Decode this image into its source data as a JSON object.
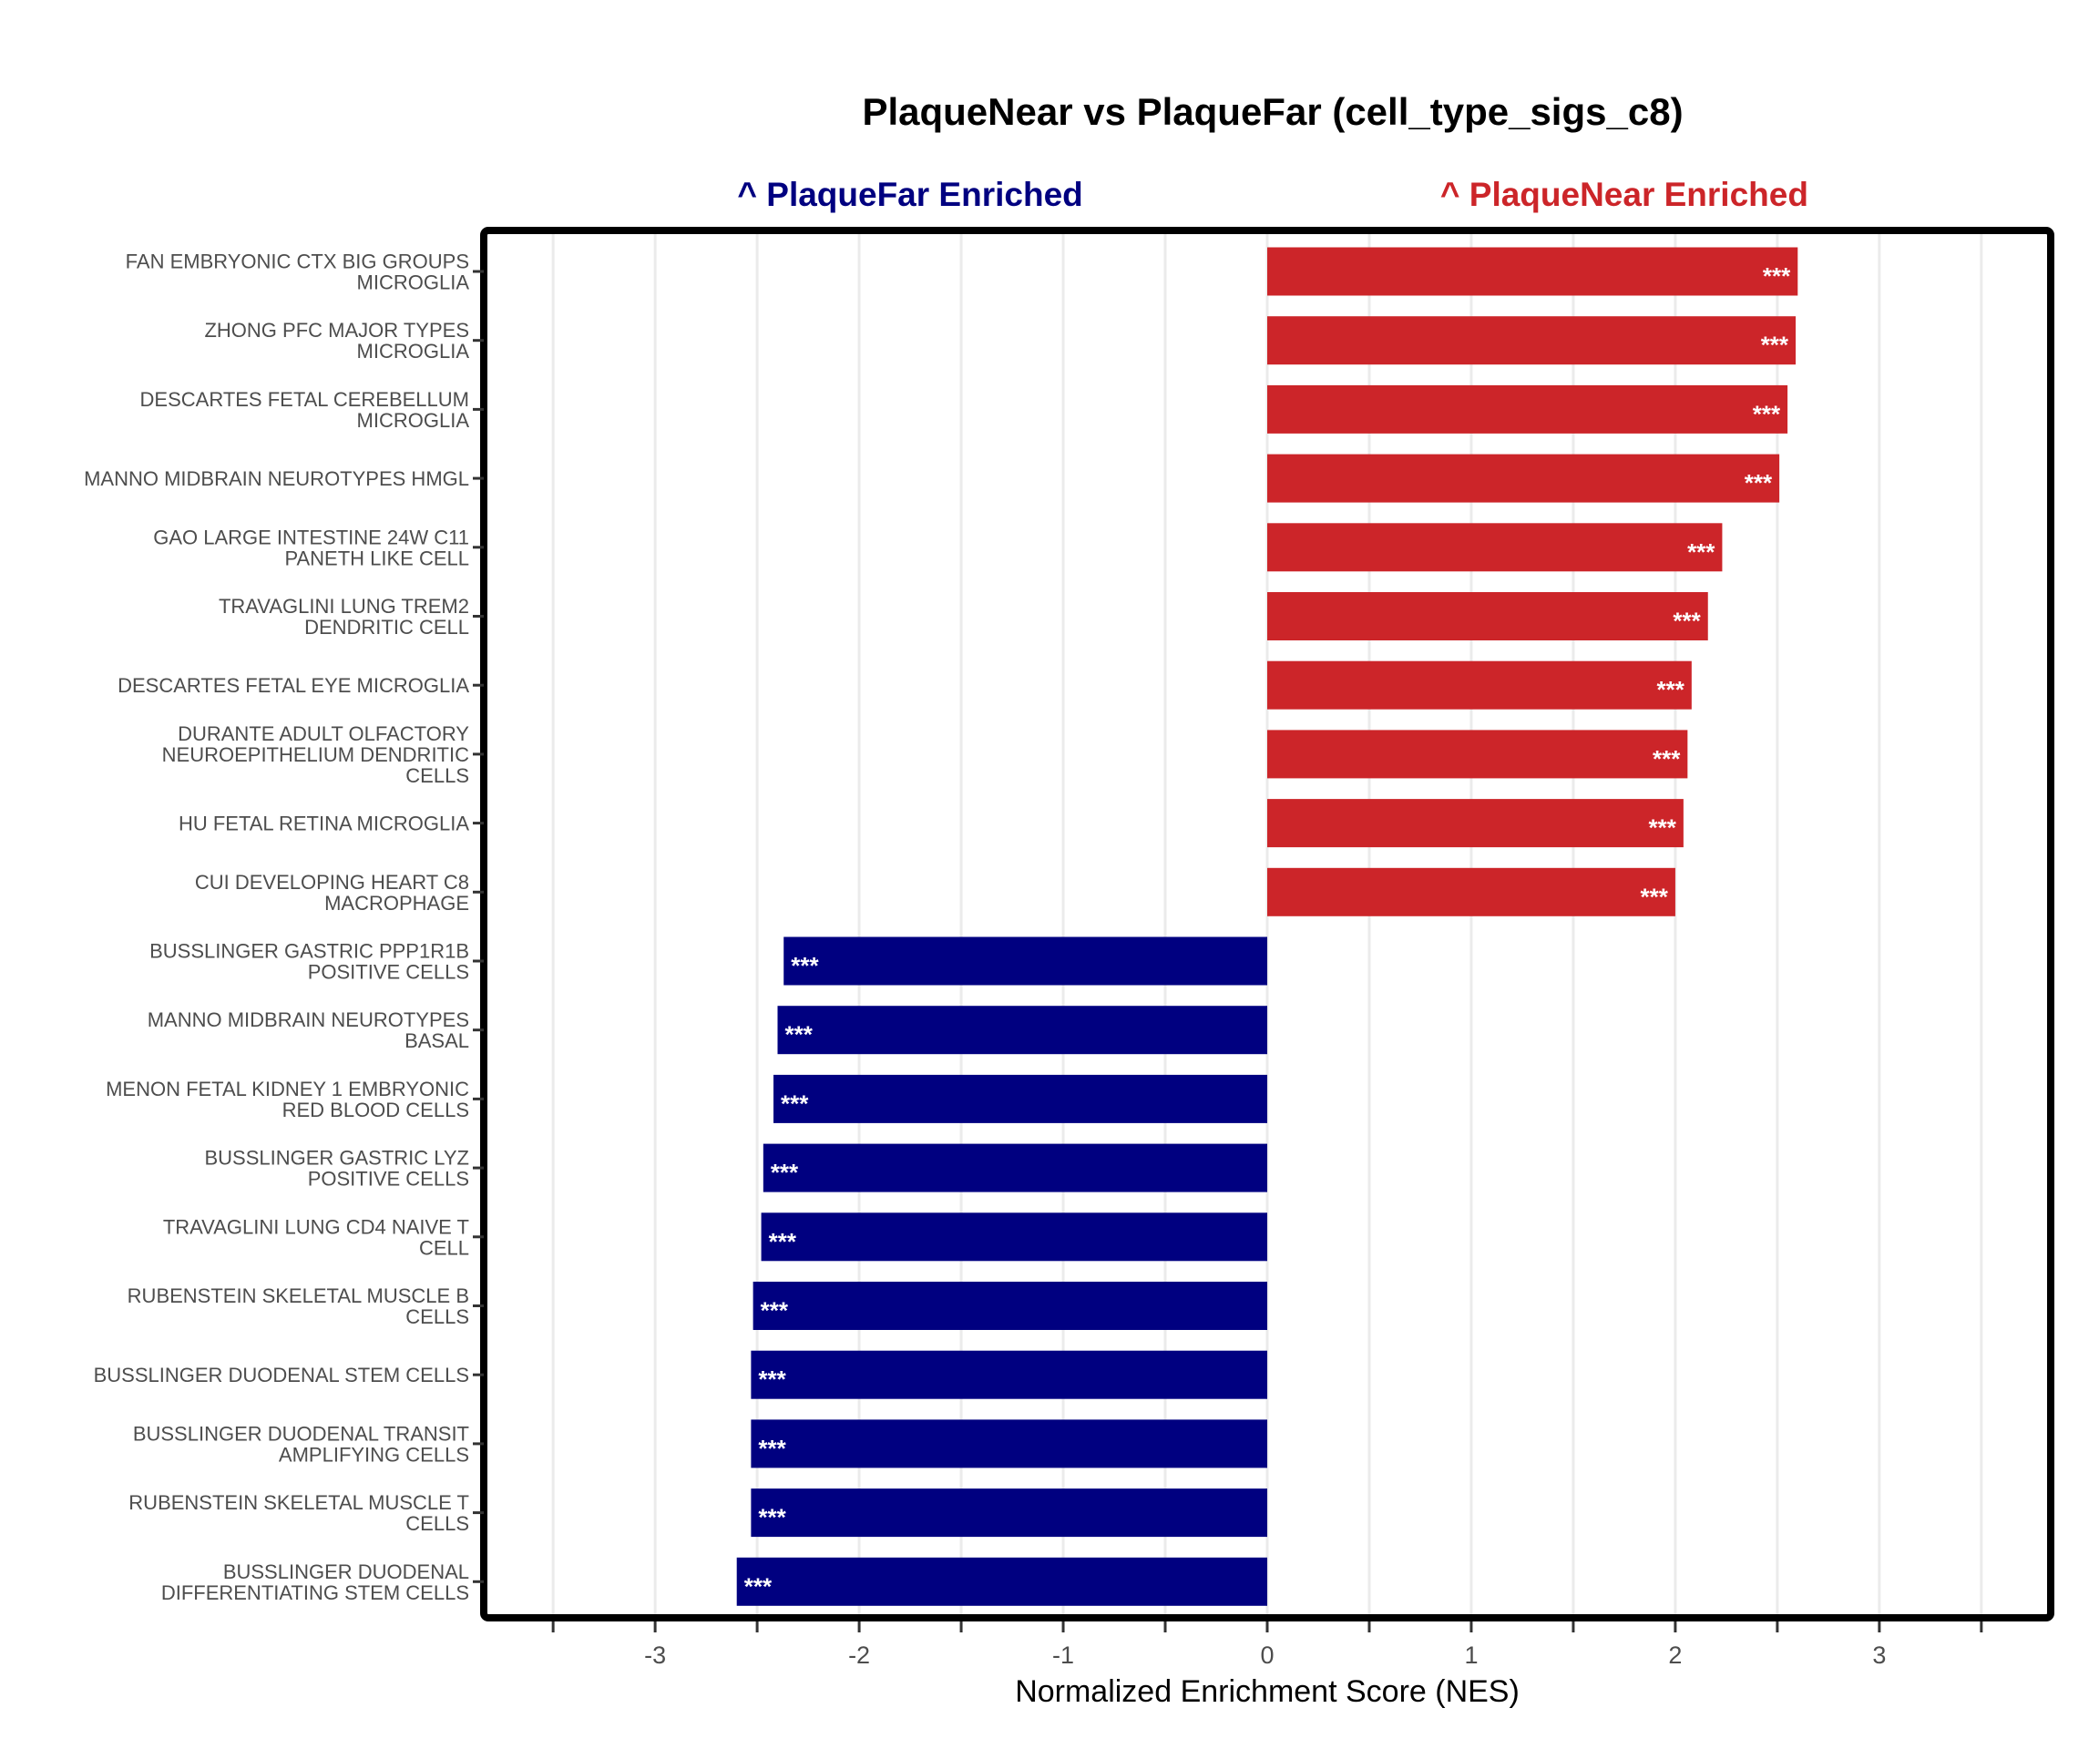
{
  "chart_data": {
    "type": "bar",
    "orientation": "horizontal",
    "title": "PlaqueNear vs PlaqueFar (cell_type_sigs_c8)",
    "xlabel": "Normalized Enrichment Score (NES)",
    "ylabel": "",
    "xlim": [
      -3.84,
      3.84
    ],
    "xticks": [
      -3,
      -2,
      -1,
      0,
      1,
      2,
      3
    ],
    "xtick_labels": [
      "-3",
      "-2",
      "-1",
      "0",
      "1",
      "2",
      "3"
    ],
    "grid": true,
    "legend": "none",
    "annotations": {
      "left": {
        "text": "^ PlaqueFar Enriched",
        "color": "#000080",
        "x": -1.75
      },
      "right": {
        "text": "^ PlaqueNear Enriched",
        "color": "#CC2529",
        "x": 1.75
      }
    },
    "colors": {
      "positive": "#CC2529",
      "negative": "#000080"
    },
    "categories": [
      [
        "FAN EMBRYONIC CTX BIG GROUPS",
        "MICROGLIA"
      ],
      [
        "ZHONG PFC MAJOR TYPES",
        "MICROGLIA"
      ],
      [
        "DESCARTES FETAL CEREBELLUM",
        "MICROGLIA"
      ],
      [
        "MANNO MIDBRAIN NEUROTYPES HMGL"
      ],
      [
        "GAO LARGE INTESTINE 24W C11",
        "PANETH LIKE CELL"
      ],
      [
        "TRAVAGLINI LUNG TREM2",
        "DENDRITIC CELL"
      ],
      [
        "DESCARTES FETAL EYE MICROGLIA"
      ],
      [
        "DURANTE ADULT OLFACTORY",
        "NEUROEPITHELIUM DENDRITIC",
        "CELLS"
      ],
      [
        "HU FETAL RETINA MICROGLIA"
      ],
      [
        "CUI DEVELOPING HEART C8",
        "MACROPHAGE"
      ],
      [
        "BUSSLINGER GASTRIC PPP1R1B",
        "POSITIVE CELLS"
      ],
      [
        "MANNO MIDBRAIN NEUROTYPES",
        "BASAL"
      ],
      [
        "MENON FETAL KIDNEY 1 EMBRYONIC",
        "RED BLOOD CELLS"
      ],
      [
        "BUSSLINGER GASTRIC LYZ",
        "POSITIVE CELLS"
      ],
      [
        "TRAVAGLINI LUNG CD4 NAIVE T",
        "CELL"
      ],
      [
        "RUBENSTEIN SKELETAL MUSCLE B",
        "CELLS"
      ],
      [
        "BUSSLINGER DUODENAL STEM CELLS"
      ],
      [
        "BUSSLINGER DUODENAL TRANSIT",
        "AMPLIFYING CELLS"
      ],
      [
        "RUBENSTEIN SKELETAL MUSCLE T",
        "CELLS"
      ],
      [
        "BUSSLINGER DUODENAL",
        "DIFFERENTIATING STEM CELLS"
      ]
    ],
    "values": [
      2.6,
      2.59,
      2.55,
      2.51,
      2.23,
      2.16,
      2.08,
      2.06,
      2.04,
      2.0,
      -2.37,
      -2.4,
      -2.42,
      -2.47,
      -2.48,
      -2.52,
      -2.53,
      -2.53,
      -2.53,
      -2.6
    ],
    "significance": [
      "***",
      "***",
      "***",
      "***",
      "***",
      "***",
      "***",
      "***",
      "***",
      "***",
      "***",
      "***",
      "***",
      "***",
      "***",
      "***",
      "***",
      "***",
      "***",
      "***"
    ]
  }
}
